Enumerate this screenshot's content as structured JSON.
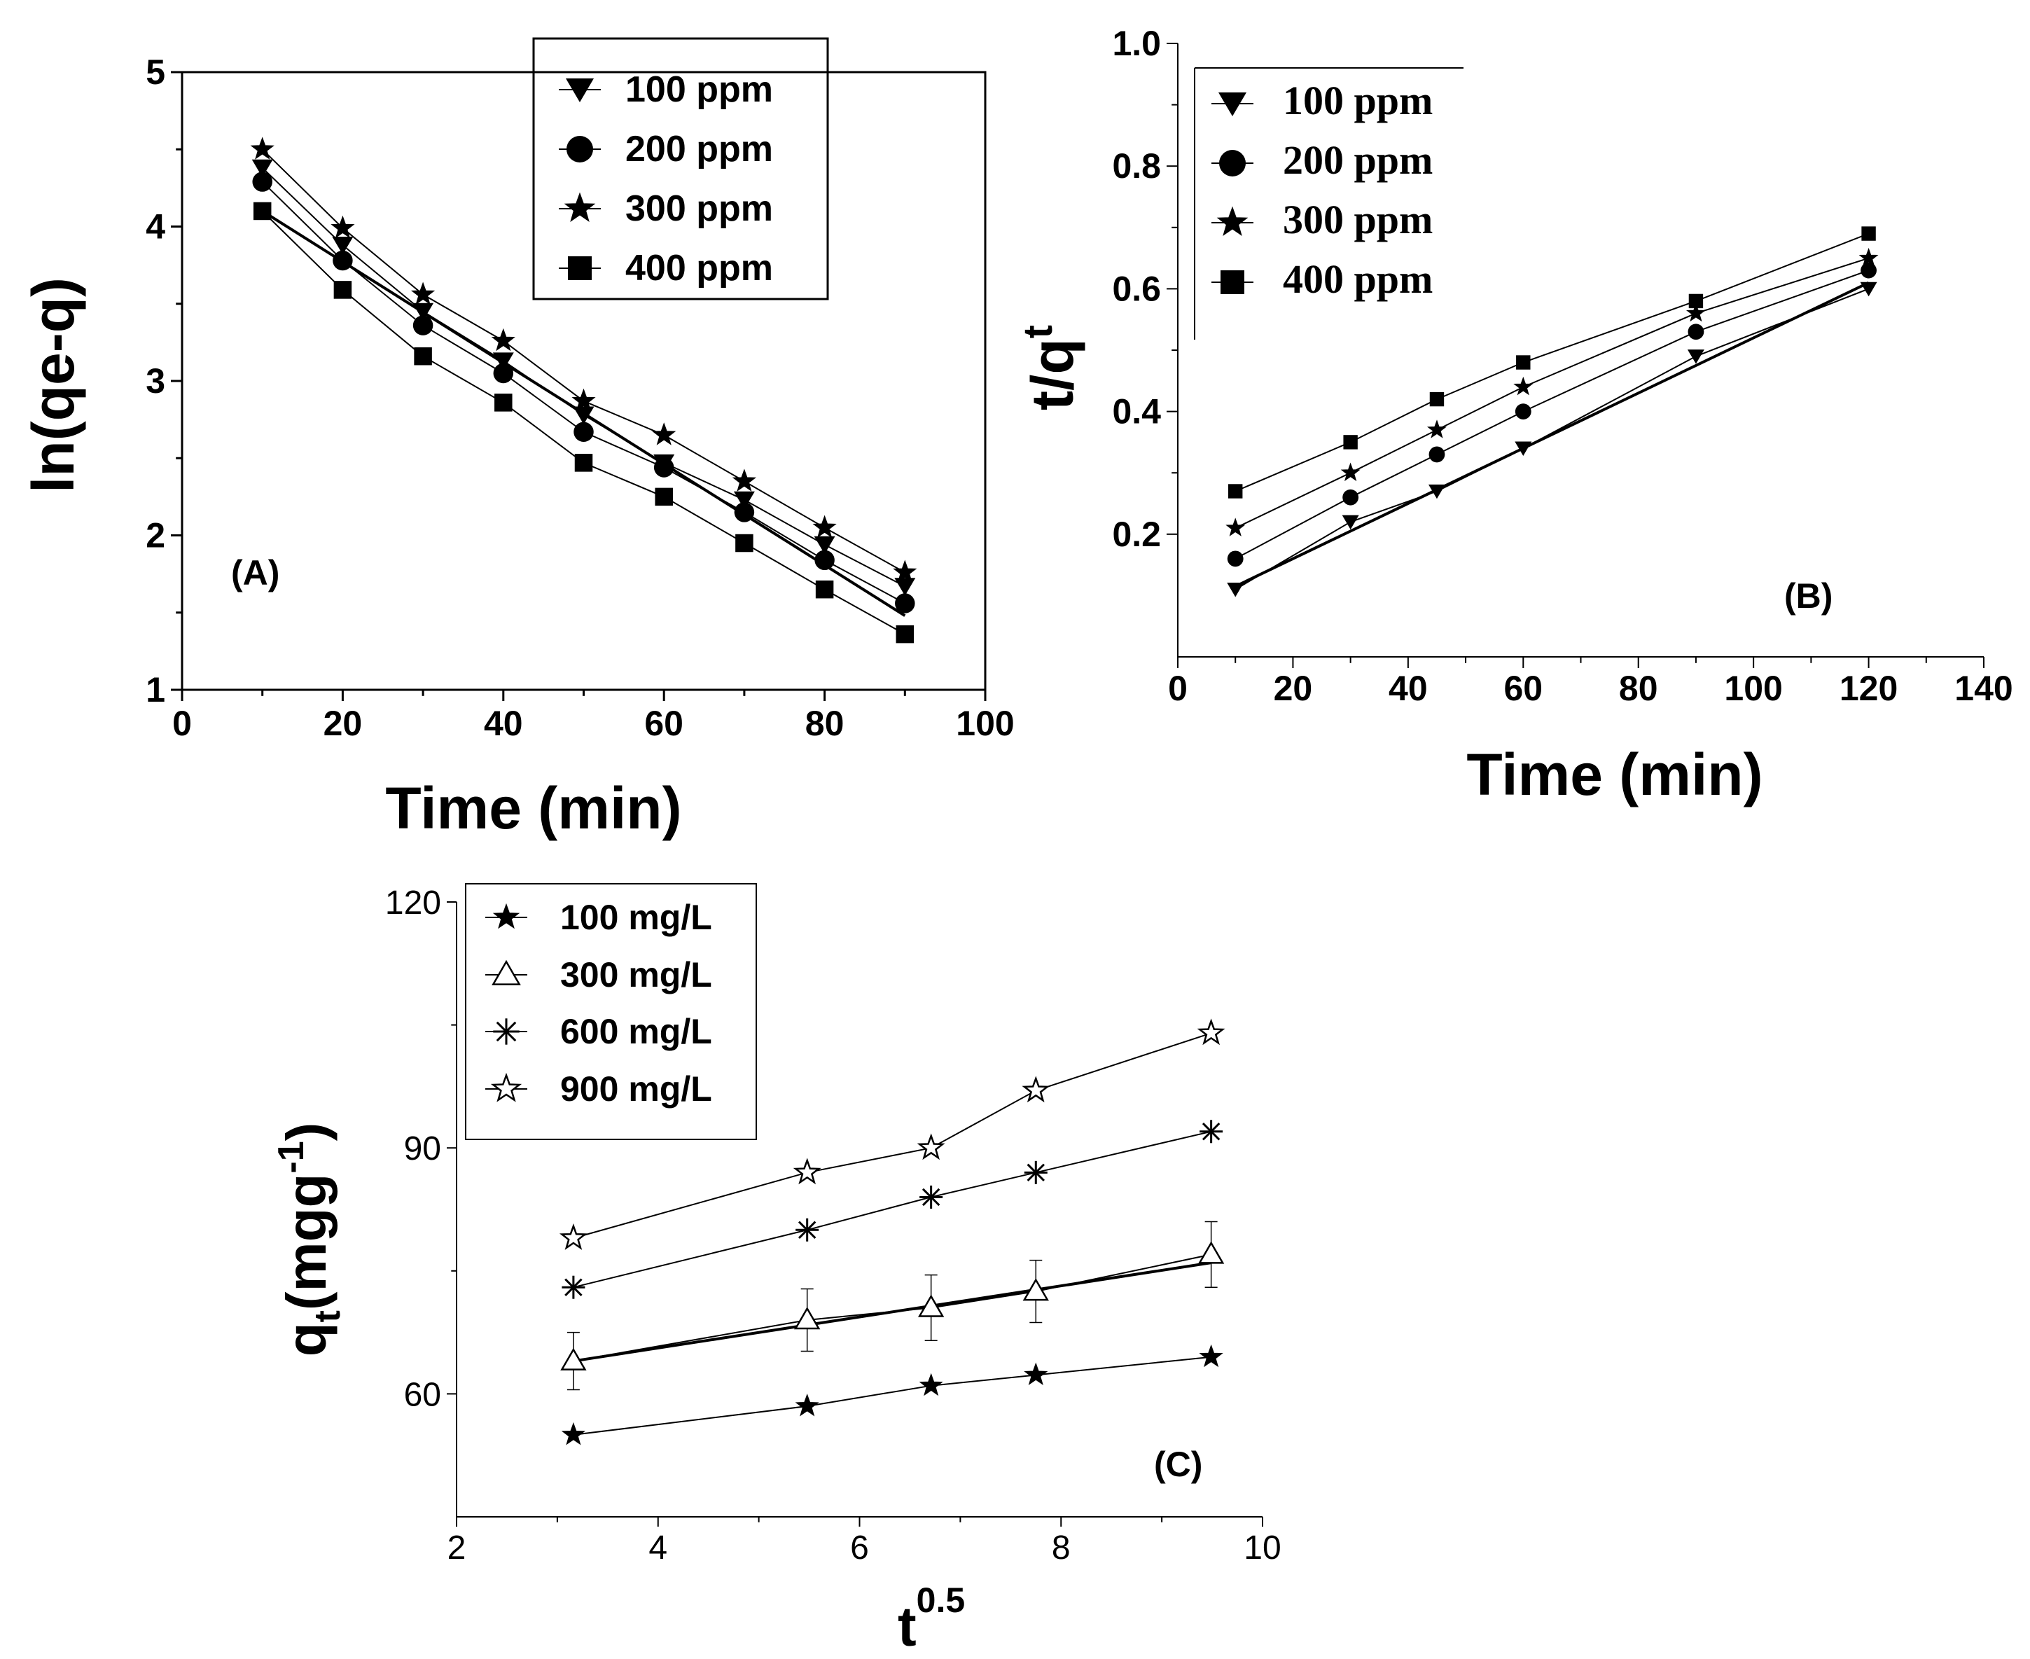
{
  "chart_data": [
    {
      "type": "line",
      "panel_label": "(A)",
      "xlabel": "Time (min)",
      "ylabel": "ln(qe-q)",
      "xlim": [
        0,
        100
      ],
      "ylim": [
        1,
        5
      ],
      "xticks": [
        "0",
        "20",
        "40",
        "60",
        "80",
        "100"
      ],
      "yticks": [
        "1",
        "2",
        "3",
        "4",
        "5"
      ],
      "legend_position": "top-right",
      "x": [
        10,
        20,
        30,
        40,
        50,
        60,
        70,
        80,
        90
      ],
      "series": [
        {
          "name": "100 ppm",
          "marker": "triangle-down",
          "values": [
            4.38,
            3.88,
            3.45,
            3.13,
            2.78,
            2.47,
            2.23,
            1.94,
            1.67
          ]
        },
        {
          "name": "200 ppm",
          "marker": "circle",
          "values": [
            4.29,
            3.78,
            3.36,
            3.05,
            2.67,
            2.44,
            2.15,
            1.84,
            1.56
          ]
        },
        {
          "name": "300 ppm",
          "marker": "star",
          "values": [
            4.5,
            3.99,
            3.56,
            3.26,
            2.87,
            2.65,
            2.35,
            2.05,
            1.76
          ]
        },
        {
          "name": "400 ppm",
          "marker": "square",
          "values": [
            4.1,
            3.59,
            3.16,
            2.86,
            2.47,
            2.25,
            1.95,
            1.65,
            1.36
          ]
        }
      ],
      "fit_line": {
        "x": [
          10,
          90
        ],
        "y": [
          4.1,
          1.48
        ]
      }
    },
    {
      "type": "line",
      "panel_label": "(B)",
      "xlabel": "Time (min)",
      "ylabel": "t/q",
      "ylabel_sup": "t",
      "xlim": [
        0,
        140
      ],
      "ylim": [
        0.0,
        1.0
      ],
      "xticks": [
        "0",
        "20",
        "40",
        "60",
        "80",
        "100",
        "120",
        "140"
      ],
      "yticks": [
        "0.2",
        "0.4",
        "0.6",
        "0.8",
        "1.0"
      ],
      "legend_position": "top-left",
      "x": [
        10,
        30,
        45,
        60,
        90,
        120
      ],
      "series": [
        {
          "name": "100 ppm",
          "marker": "triangle-down",
          "values": [
            0.11,
            0.22,
            0.27,
            0.34,
            0.49,
            0.6
          ]
        },
        {
          "name": "200 ppm",
          "marker": "circle",
          "values": [
            0.16,
            0.26,
            0.33,
            0.4,
            0.53,
            0.63
          ]
        },
        {
          "name": "300 ppm",
          "marker": "star",
          "values": [
            0.21,
            0.3,
            0.37,
            0.44,
            0.56,
            0.65
          ]
        },
        {
          "name": "400 ppm",
          "marker": "square",
          "values": [
            0.27,
            0.35,
            0.42,
            0.48,
            0.58,
            0.69
          ]
        }
      ],
      "fit_line": {
        "x": [
          10,
          120
        ],
        "y": [
          0.115,
          0.61
        ]
      }
    },
    {
      "type": "line",
      "panel_label": "(C)",
      "xlabel": "t",
      "xlabel_sup": "0.5",
      "ylabel": "q",
      "ylabel_sub": "t",
      "ylabel_rest": "(mgg",
      "ylabel_sup": "-1",
      "ylabel_end": ")",
      "xlim": [
        2,
        10
      ],
      "ylim": [
        45,
        120
      ],
      "xticks": [
        "2",
        "4",
        "6",
        "8",
        "10"
      ],
      "yticks": [
        "60",
        "90",
        "120"
      ],
      "legend_position": "top-left",
      "x": [
        3.16,
        5.48,
        6.71,
        7.75,
        9.49
      ],
      "series": [
        {
          "name": "100 mg/L",
          "marker": "star-filled",
          "values": [
            55.0,
            58.5,
            61.0,
            62.3,
            64.5
          ],
          "errors": [
            0,
            0,
            0,
            0,
            0
          ]
        },
        {
          "name": "300 mg/L",
          "marker": "triangle-open",
          "values": [
            64.0,
            69.0,
            70.5,
            72.5,
            77.0
          ],
          "errors": [
            3.5,
            3.8,
            4.0,
            3.8,
            4.0
          ]
        },
        {
          "name": "600 mg/L",
          "marker": "asterisk",
          "values": [
            73.0,
            80.0,
            84.0,
            87.0,
            92.0
          ],
          "errors": [
            0,
            0,
            0,
            0,
            0
          ]
        },
        {
          "name": "900 mg/L",
          "marker": "star-open",
          "values": [
            79.0,
            87.0,
            90.0,
            97.0,
            104.0
          ],
          "errors": [
            0,
            0,
            0,
            0,
            0
          ]
        }
      ],
      "fit_line": {
        "x": [
          3.16,
          9.49
        ],
        "y": [
          64.0,
          76.0
        ]
      }
    }
  ]
}
